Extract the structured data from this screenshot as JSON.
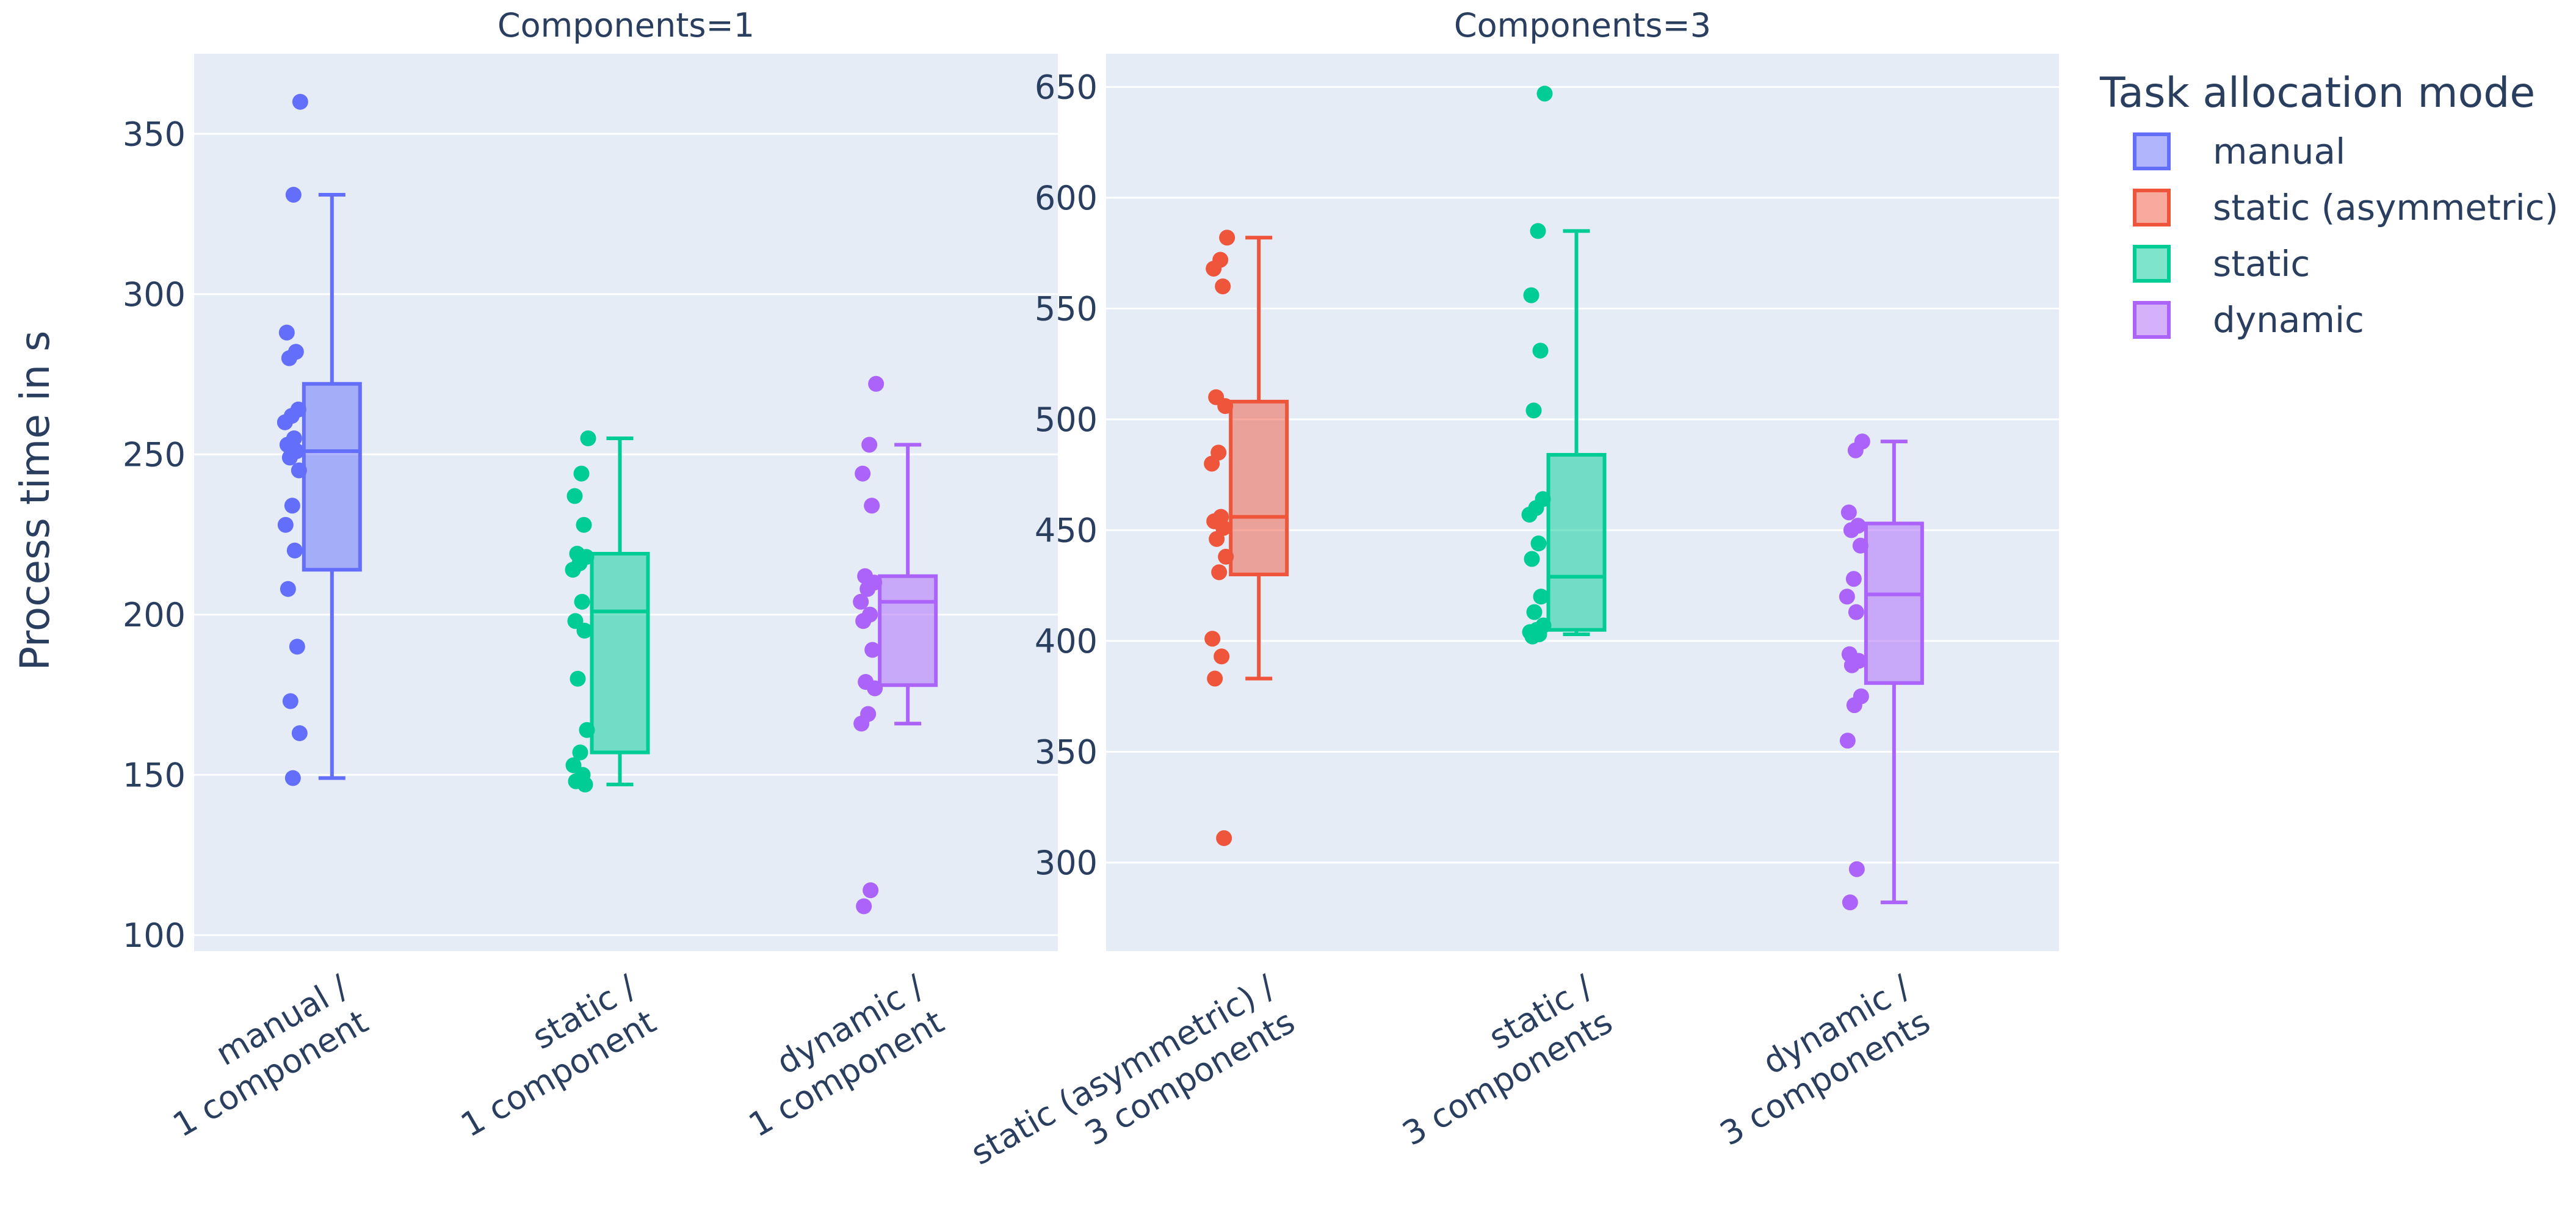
{
  "chart_data": {
    "type": "box",
    "y_axis_title": "Process time in s",
    "legend": {
      "title": "Task allocation mode",
      "placement": "top-right",
      "items": [
        {
          "name": "manual",
          "color": "#636efa"
        },
        {
          "name": "static (asymmetric)",
          "color": "#ef553b"
        },
        {
          "name": "static",
          "color": "#00cc96"
        },
        {
          "name": "dynamic",
          "color": "#ab63fa"
        }
      ]
    },
    "panels": [
      {
        "title": "Components=1",
        "ylim": [
          95,
          375
        ],
        "yticks": [
          100,
          150,
          200,
          250,
          300,
          350
        ],
        "boxes": [
          {
            "mode": "manual",
            "label_lines": [
              "manual /",
              "1 component"
            ],
            "q1": 214,
            "median": 251,
            "q3": 272,
            "lower_whisker": 149,
            "upper_whisker": 331,
            "points": [
              360,
              331,
              288,
              282,
              280,
              264,
              262,
              260,
              255,
              253,
              251,
              249,
              245,
              234,
              228,
              220,
              208,
              190,
              173,
              163,
              149
            ]
          },
          {
            "mode": "static",
            "label_lines": [
              "static /",
              "1 component"
            ],
            "q1": 157,
            "median": 201,
            "q3": 219,
            "lower_whisker": 147,
            "upper_whisker": 255,
            "points": [
              255,
              244,
              237,
              228,
              219,
              218,
              216,
              214,
              204,
              198,
              195,
              180,
              164,
              157,
              153,
              150,
              148,
              147
            ]
          },
          {
            "mode": "dynamic",
            "label_lines": [
              "dynamic /",
              "1 component"
            ],
            "q1": 178,
            "median": 204,
            "q3": 212,
            "lower_whisker": 166,
            "upper_whisker": 253,
            "points": [
              272,
              253,
              244,
              234,
              212,
              210,
              208,
              204,
              200,
              198,
              189,
              179,
              177,
              169,
              166,
              114,
              109
            ]
          }
        ]
      },
      {
        "title": "Components=3",
        "ylim": [
          260,
          665
        ],
        "yticks": [
          300,
          350,
          400,
          450,
          500,
          550,
          600,
          650
        ],
        "boxes": [
          {
            "mode": "static (asymmetric)",
            "label_lines": [
              "static (asymmetric) /",
              "3 components"
            ],
            "q1": 430,
            "median": 456,
            "q3": 508,
            "lower_whisker": 383,
            "upper_whisker": 582,
            "points": [
              582,
              572,
              568,
              560,
              510,
              506,
              485,
              480,
              456,
              454,
              451,
              446,
              438,
              431,
              401,
              393,
              383,
              311
            ]
          },
          {
            "mode": "static",
            "label_lines": [
              "static /",
              "3 components"
            ],
            "q1": 405,
            "median": 429,
            "q3": 484,
            "lower_whisker": 403,
            "upper_whisker": 585,
            "points": [
              647,
              585,
              556,
              531,
              504,
              464,
              460,
              457,
              444,
              437,
              420,
              413,
              407,
              405,
              404,
              403,
              402
            ]
          },
          {
            "mode": "dynamic",
            "label_lines": [
              "dynamic /",
              "3 components"
            ],
            "q1": 381,
            "median": 421,
            "q3": 453,
            "lower_whisker": 282,
            "upper_whisker": 490,
            "points": [
              490,
              486,
              458,
              452,
              450,
              443,
              428,
              420,
              413,
              394,
              391,
              389,
              375,
              371,
              355,
              297,
              282
            ]
          }
        ]
      }
    ]
  }
}
